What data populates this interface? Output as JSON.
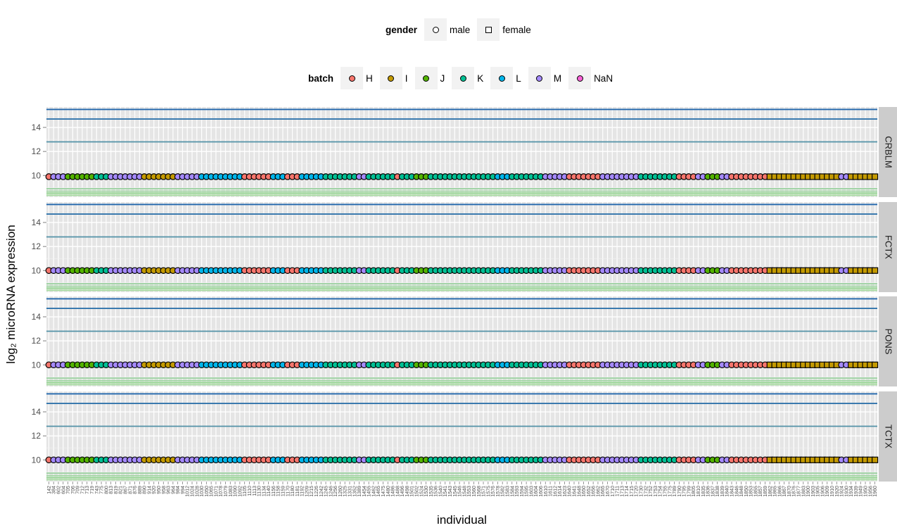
{
  "legends": {
    "gender": {
      "title": "gender",
      "items": [
        {
          "label": "male",
          "shape": "circle"
        },
        {
          "label": "female",
          "shape": "square"
        }
      ]
    },
    "batch": {
      "title": "batch",
      "items": [
        {
          "label": "H",
          "color": "#F8766D"
        },
        {
          "label": "I",
          "color": "#C49A00"
        },
        {
          "label": "J",
          "color": "#53B400"
        },
        {
          "label": "K",
          "color": "#00C094"
        },
        {
          "label": "L",
          "color": "#00B6EB"
        },
        {
          "label": "M",
          "color": "#A58AFF"
        },
        {
          "label": "NaN",
          "color": "#FB61D7"
        }
      ]
    }
  },
  "chart_data": {
    "type": "scatter",
    "xlabel": "individual",
    "ylabel": "log₂ microRNA expression",
    "ylim": [
      8.2,
      15.7
    ],
    "y_ticks": [
      10,
      12,
      14
    ],
    "facet_labels": [
      "CRBLM",
      "FCTX",
      "PONS",
      "TCTX"
    ],
    "x": [
      "142",
      "384",
      "602",
      "604",
      "705",
      "706",
      "709",
      "712",
      "713",
      "719",
      "743",
      "775",
      "800",
      "813",
      "819",
      "821",
      "867",
      "871",
      "876",
      "889",
      "890",
      "914",
      "920",
      "950",
      "958",
      "963",
      "964",
      "984",
      "994",
      "1012",
      "1024",
      "1028",
      "1030",
      "1050",
      "1065",
      "1071",
      "1078",
      "1079",
      "1083",
      "1090",
      "1092",
      "1105",
      "1110",
      "1113",
      "1130",
      "1134",
      "1140",
      "1156",
      "1158",
      "1159",
      "1170",
      "1180",
      "1181",
      "1192",
      "1209",
      "1215",
      "1226",
      "1242",
      "1245",
      "1246",
      "1256",
      "1260",
      "1325",
      "1331",
      "1352",
      "1389",
      "1454",
      "1455",
      "1462",
      "1465",
      "1475",
      "1480",
      "1486",
      "1488",
      "1496",
      "1498",
      "1501",
      "1502",
      "1524",
      "1530",
      "1535",
      "1536",
      "1540",
      "1541",
      "1543",
      "1545",
      "1546",
      "1548",
      "1553",
      "1560",
      "1568",
      "1571",
      "1575",
      "1576",
      "1578",
      "1582",
      "1583",
      "1584",
      "1593",
      "1594",
      "1595",
      "1603",
      "1604",
      "1606",
      "1610",
      "1611",
      "1612",
      "1614",
      "1623",
      "1640",
      "1641",
      "1648",
      "1650",
      "1652",
      "1656",
      "1662",
      "1665",
      "1670",
      "1710",
      "1711",
      "1713",
      "1714",
      "1715",
      "1720",
      "1730",
      "1732",
      "1752",
      "1753",
      "1754",
      "1755",
      "1775",
      "1789",
      "1790",
      "1795",
      "1799",
      "1805",
      "1810",
      "1835",
      "1836",
      "1837",
      "1838",
      "1839",
      "1840",
      "1843",
      "1846",
      "1848",
      "1850",
      "1853",
      "1855",
      "1857",
      "1859",
      "1862",
      "1865",
      "1866",
      "1867",
      "1870",
      "1876",
      "1877",
      "1883",
      "1900",
      "1903",
      "1905",
      "1906",
      "1909",
      "1910",
      "1920",
      "1924",
      "1930",
      "1934",
      "1939",
      "1949",
      "1950",
      "1956",
      "1960",
      "1961",
      "1971",
      "1990",
      "2000",
      "2001",
      "2009",
      "2010",
      "2024",
      "2037",
      "2049",
      "2066",
      "2069",
      "2071",
      "2080",
      "2099",
      "2100",
      "2102",
      "2103",
      "2263",
      "2289",
      "2523",
      "2541",
      "2542",
      "2543",
      "2544",
      "2545",
      "2546",
      "2547",
      "2549",
      "2550",
      "2559",
      "2580",
      "4459",
      "4460",
      "4461",
      "4493",
      "4498",
      "4513",
      "4520",
      "4572",
      "4636",
      "4640",
      "4645",
      "4655",
      "4712",
      "4725",
      "4726",
      "4729",
      "4730",
      "4732",
      "4733",
      "4755",
      "4782",
      "4788",
      "4800",
      "4841",
      "4842",
      "4861",
      "4880",
      "4889",
      "4895",
      "4910",
      "4915",
      "4916",
      "4917",
      "4920",
      "4924",
      "5014",
      "5024",
      "5030",
      "5034",
      "5066",
      "5070",
      "5076",
      "5077",
      "5078",
      "5081",
      "5082",
      "5083",
      "5084",
      "5085",
      "5086",
      "5087"
    ],
    "points_per_facet": 174,
    "point_y": [
      9.9,
      10.0,
      10.0,
      10.0
    ],
    "point_batch_runs": [
      {
        "batch": "H",
        "count": 1
      },
      {
        "batch": "M",
        "count": 3
      },
      {
        "batch": "J",
        "count": 6
      },
      {
        "batch": "K",
        "count": 3
      },
      {
        "batch": "M",
        "count": 7
      },
      {
        "batch": "I",
        "count": 7
      },
      {
        "batch": "M",
        "count": 5
      },
      {
        "batch": "L",
        "count": 9
      },
      {
        "batch": "H",
        "count": 6
      },
      {
        "batch": "L",
        "count": 3
      },
      {
        "batch": "H",
        "count": 3
      },
      {
        "batch": "L",
        "count": 5
      },
      {
        "batch": "K",
        "count": 7
      },
      {
        "batch": "M",
        "count": 2
      },
      {
        "batch": "K",
        "count": 6
      },
      {
        "batch": "H",
        "count": 1
      },
      {
        "batch": "K",
        "count": 3
      },
      {
        "batch": "J",
        "count": 3
      },
      {
        "batch": "K",
        "count": 14
      },
      {
        "batch": "L",
        "count": 3
      },
      {
        "batch": "K",
        "count": 7
      },
      {
        "batch": "M",
        "count": 5
      },
      {
        "batch": "H",
        "count": 7
      },
      {
        "batch": "M",
        "count": 8
      },
      {
        "batch": "K",
        "count": 8
      },
      {
        "batch": "H",
        "count": 4
      },
      {
        "batch": "M",
        "count": 2
      },
      {
        "batch": "J",
        "count": 3
      },
      {
        "batch": "M",
        "count": 2
      },
      {
        "batch": "H",
        "count": 8
      },
      {
        "batch": "I",
        "count": 15
      },
      {
        "batch": "M",
        "count": 2
      },
      {
        "batch": "I",
        "count": 9
      }
    ],
    "lines": {
      "color_range": [
        "#A6DBA0",
        "#2166AC"
      ],
      "levels": [
        15.5,
        14.7,
        12.8,
        8.9,
        8.7,
        8.55,
        8.5,
        8.35
      ]
    },
    "grid": true
  }
}
